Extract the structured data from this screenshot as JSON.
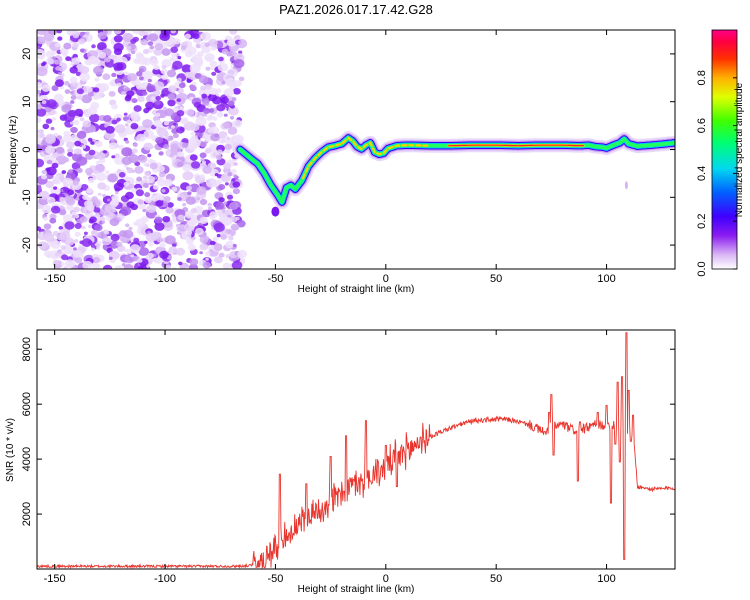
{
  "title": "PAZ1.2026.017.17.42.G28",
  "chart_data": [
    {
      "type": "heatmap",
      "name": "spectrogram",
      "xlabel": "Height of straight line (km)",
      "ylabel": "Frequency (Hz)",
      "xlim": [
        -158,
        131
      ],
      "ylim": [
        -25,
        25
      ],
      "xticks": [
        -150,
        -100,
        -50,
        0,
        50,
        100
      ],
      "yticks": [
        -20,
        -10,
        0,
        10,
        20
      ],
      "noise_region_x": [
        -158,
        -65
      ],
      "ridge": {
        "description": "frequency of peak spectral amplitude vs height",
        "x": [
          -66,
          -62,
          -58,
          -55,
          -52,
          -49,
          -47,
          -45,
          -43,
          -41,
          -38,
          -35,
          -32,
          -29,
          -26,
          -23,
          -20,
          -17,
          -15,
          -13,
          -11,
          -9,
          -7,
          -5,
          -3,
          -1,
          1,
          5,
          10,
          20,
          30,
          40,
          50,
          60,
          70,
          80,
          88,
          92,
          95,
          98,
          100,
          103,
          106,
          108,
          110,
          114,
          120,
          125,
          131
        ],
        "y": [
          0,
          -1.5,
          -3,
          -5,
          -7.5,
          -9.5,
          -11,
          -8,
          -7.5,
          -8.3,
          -6.5,
          -3.5,
          -1.8,
          -0.5,
          0.5,
          0.8,
          1.2,
          2.4,
          1.8,
          0.6,
          0.1,
          0.9,
          1.4,
          -0.6,
          -1,
          -0.8,
          0.2,
          0.8,
          0.9,
          0.8,
          0.8,
          0.9,
          0.9,
          0.8,
          0.9,
          0.9,
          0.8,
          0.9,
          0.6,
          0.5,
          0.3,
          0.9,
          1.4,
          2.2,
          1.2,
          0.7,
          0.9,
          1.1,
          1.4
        ]
      },
      "colorbar": {
        "label": "Normalized spectral amplitude",
        "range": [
          0,
          1
        ],
        "ticks": [
          0.0,
          0.2,
          0.4,
          0.6,
          0.8
        ],
        "tick_labels": [
          "0.0",
          "0.2",
          "0.4",
          "0.6",
          "0.8"
        ],
        "colormap": "rainbow (white → purple → blue → cyan → green → yellow → orange → red → magenta)"
      }
    },
    {
      "type": "line",
      "name": "snr",
      "xlabel": "Height of straight line (km)",
      "ylabel": "SNR (10 * v/v)",
      "xlim": [
        -158,
        131
      ],
      "ylim": [
        0,
        8700
      ],
      "xticks": [
        -150,
        -100,
        -50,
        0,
        50,
        100
      ],
      "yticks": [
        2000,
        4000,
        6000,
        8000
      ],
      "color": "#e8342c",
      "envelope": {
        "description": "approximate mean SNR trend vs height",
        "x": [
          -158,
          -70,
          -62,
          -58,
          -55,
          -50,
          -45,
          -40,
          -35,
          -30,
          -25,
          -20,
          -15,
          -10,
          -5,
          0,
          5,
          10,
          15,
          20,
          25,
          30,
          35,
          40,
          50,
          55,
          60,
          65,
          70,
          72,
          75,
          80,
          85,
          90,
          95,
          100,
          105,
          108,
          110,
          112,
          114,
          120,
          131
        ],
        "y": [
          100,
          100,
          120,
          200,
          450,
          800,
          1200,
          1550,
          1900,
          2150,
          2450,
          2750,
          3000,
          3250,
          3500,
          3750,
          4050,
          4350,
          4600,
          4800,
          5000,
          5150,
          5300,
          5400,
          5450,
          5450,
          5350,
          5250,
          5050,
          4950,
          5200,
          5250,
          5050,
          5100,
          5250,
          5250,
          5300,
          5150,
          5100,
          5050,
          3000,
          2900,
          2950
        ]
      },
      "spikes": [
        {
          "x": -48,
          "y": 3450
        },
        {
          "x": -47,
          "y": 1050
        },
        {
          "x": -36,
          "y": 3100
        },
        {
          "x": -25,
          "y": 4100
        },
        {
          "x": -18,
          "y": 4850
        },
        {
          "x": -9,
          "y": 5400
        },
        {
          "x": -7,
          "y": 3200
        },
        {
          "x": 0,
          "y": 4500
        },
        {
          "x": 5,
          "y": 3000
        },
        {
          "x": 72,
          "y": 5000
        },
        {
          "x": 74,
          "y": 5700
        },
        {
          "x": 75,
          "y": 6350
        },
        {
          "x": 76,
          "y": 4150
        },
        {
          "x": 87,
          "y": 3200
        },
        {
          "x": 88,
          "y": 5350
        },
        {
          "x": 96,
          "y": 5700
        },
        {
          "x": 100,
          "y": 5950
        },
        {
          "x": 102,
          "y": 2400
        },
        {
          "x": 104,
          "y": 4550
        },
        {
          "x": 105,
          "y": 6800
        },
        {
          "x": 106,
          "y": 3900
        },
        {
          "x": 107,
          "y": 7000
        },
        {
          "x": 108,
          "y": 350
        },
        {
          "x": 109,
          "y": 8600
        },
        {
          "x": 110,
          "y": 6500
        },
        {
          "x": 111,
          "y": 4650
        },
        {
          "x": 112,
          "y": 5600
        }
      ]
    }
  ]
}
